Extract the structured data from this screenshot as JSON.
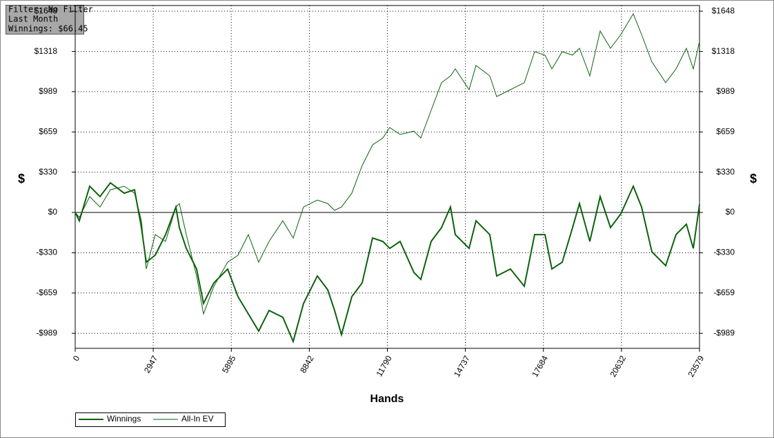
{
  "chart_data": {
    "type": "line",
    "annotations": [
      "Filter: No Filter",
      "Last Month",
      "Winnings: $66.45"
    ],
    "xlabel": "Hands",
    "ylabel": "$",
    "xlim": [
      0,
      23579
    ],
    "ylim": [
      -1112,
      1694
    ],
    "xticks": [
      0,
      2947,
      5895,
      8842,
      11790,
      14737,
      17684,
      20632,
      23579
    ],
    "yticks": [
      {
        "value": 1648,
        "label": "$1648"
      },
      {
        "value": 1318,
        "label": "$1318"
      },
      {
        "value": 989,
        "label": "$989"
      },
      {
        "value": 659,
        "label": "$659"
      },
      {
        "value": 330,
        "label": "$330"
      },
      {
        "value": 0,
        "label": "$0"
      },
      {
        "value": -330,
        "label": "-$330"
      },
      {
        "value": -659,
        "label": "-$659"
      },
      {
        "value": -989,
        "label": "-$989"
      }
    ],
    "grid": true,
    "x": [
      0,
      156,
      547,
      938,
      1329,
      1850,
      2241,
      2501,
      2684,
      3022,
      3413,
      3804,
      3934,
      4195,
      4586,
      4846,
      5237,
      5758,
      6149,
      6540,
      6930,
      7321,
      7842,
      8233,
      8624,
      9145,
      9536,
      9796,
      10057,
      10448,
      10839,
      11230,
      11620,
      11881,
      12272,
      12793,
      13054,
      13444,
      13835,
      14173,
      14356,
      14877,
      15138,
      15659,
      15919,
      16440,
      16961,
      17352,
      17743,
      18003,
      18394,
      18785,
      19045,
      19436,
      19827,
      20218,
      20609,
      21078,
      21390,
      21781,
      22302,
      22693,
      23084,
      23344,
      23579
    ],
    "series": [
      {
        "name": "Winnings",
        "color": "#0b610b",
        "width": 2,
        "values": [
          0,
          -68,
          215,
          130,
          243,
          158,
          186,
          -124,
          -407,
          -350,
          -181,
          45,
          -124,
          -294,
          -463,
          -745,
          -576,
          -463,
          -689,
          -830,
          -971,
          -802,
          -858,
          -1056,
          -745,
          -520,
          -632,
          -802,
          -1000,
          -689,
          -576,
          -209,
          -237,
          -294,
          -237,
          -491,
          -548,
          -237,
          -124,
          45,
          -181,
          -294,
          -68,
          -181,
          -520,
          -463,
          -604,
          -181,
          -181,
          -463,
          -407,
          -124,
          73,
          -237,
          130,
          -124,
          -11,
          215,
          45,
          -322,
          -435,
          -181,
          -96,
          -294,
          66.45
        ]
      },
      {
        "name": "All-In EV",
        "color": "#0b610b",
        "width": 1,
        "values": [
          0,
          -40,
          130,
          45,
          186,
          215,
          158,
          -68,
          -463,
          -181,
          -237,
          45,
          73,
          -181,
          -520,
          -830,
          -604,
          -407,
          -350,
          -181,
          -407,
          -237,
          -68,
          -209,
          45,
          102,
          73,
          17,
          45,
          158,
          384,
          553,
          610,
          695,
          638,
          666,
          610,
          836,
          1062,
          1118,
          1175,
          1005,
          1203,
          1118,
          949,
          1005,
          1062,
          1316,
          1288,
          1175,
          1316,
          1288,
          1344,
          1118,
          1485,
          1344,
          1457,
          1626,
          1457,
          1232,
          1062,
          1175,
          1344,
          1175,
          1400
        ]
      }
    ]
  }
}
